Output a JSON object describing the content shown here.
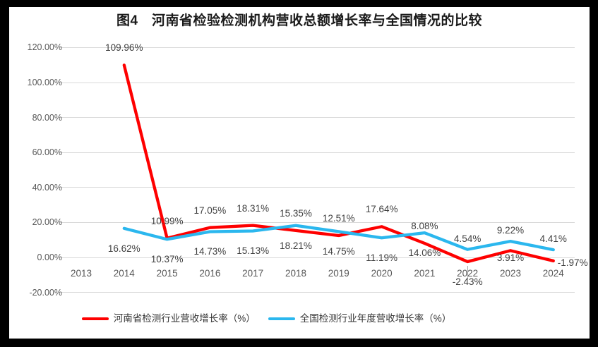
{
  "colors": {
    "frame": "#000000",
    "panel_bg": "#ffffff",
    "grid": "#d9d9d9",
    "axis_text": "#595959",
    "data_label_text": "#404040",
    "title_text": "#1a1a1a",
    "henan_line": "#fe0000",
    "national_line": "#2bb7ee"
  },
  "chart_data": {
    "type": "line",
    "title": "图4　河南省检验检测机构营收总额增长率与全国情况的比较",
    "xlabel": "",
    "ylabel": "",
    "categories": [
      "2013",
      "2014",
      "2015",
      "2016",
      "2017",
      "2018",
      "2019",
      "2020",
      "2021",
      "2022",
      "2023",
      "2024"
    ],
    "y_axis": {
      "ticks": [
        "120.00%",
        "100.00%",
        "80.00%",
        "60.00%",
        "40.00%",
        "20.00%",
        "0.00%",
        "-20.00%"
      ],
      "min": -20,
      "max": 120,
      "step": 20
    },
    "grid": true,
    "legend_position": "bottom",
    "series": [
      {
        "id": "henan",
        "name": "河南省检测行业营收增长率（%）",
        "color": "#fe0000",
        "years": [
          "2014",
          "2015",
          "2016",
          "2017",
          "2018",
          "2019",
          "2020",
          "2021",
          "2022",
          "2023",
          "2024"
        ],
        "values": [
          109.96,
          10.99,
          17.05,
          18.31,
          15.35,
          12.51,
          17.64,
          8.08,
          -2.43,
          3.91,
          -1.97
        ],
        "labels": [
          "109.96%",
          "10.99%",
          "17.05%",
          "18.31%",
          "15.35%",
          "12.51%",
          "17.64%",
          "8.08%",
          "-2.43%",
          "3.91%",
          "-1.97%"
        ],
        "label_pos": [
          "above",
          "above",
          "above",
          "above",
          "above",
          "above",
          "above",
          "above",
          "below",
          "below-near",
          "right"
        ],
        "leader_year": "2022"
      },
      {
        "id": "national",
        "name": "全国检测行业年度营收增长率（%）",
        "color": "#2bb7ee",
        "years": [
          "2014",
          "2015",
          "2016",
          "2017",
          "2018",
          "2019",
          "2020",
          "2021",
          "2022",
          "2023",
          "2024"
        ],
        "values": [
          16.62,
          10.37,
          14.73,
          15.13,
          18.21,
          14.75,
          11.19,
          14.06,
          4.54,
          9.22,
          4.41
        ],
        "labels": [
          "16.62%",
          "10.37%",
          "14.73%",
          "15.13%",
          "18.21%",
          "14.75%",
          "11.19%",
          "14.06%",
          "4.54%",
          "9.22%",
          "4.41%"
        ],
        "label_pos": [
          "below",
          "below",
          "below",
          "below",
          "below",
          "below",
          "below",
          "below",
          "above-near",
          "above-near",
          "above-near"
        ]
      }
    ]
  }
}
